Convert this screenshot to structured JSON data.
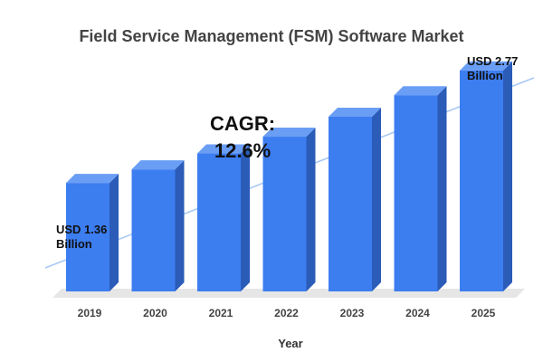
{
  "chart_data": {
    "type": "bar",
    "title": "Field Service Management (FSM) Software Market",
    "xlabel": "Year",
    "ylabel": "",
    "categories": [
      "2019",
      "2020",
      "2021",
      "2022",
      "2023",
      "2024",
      "2025"
    ],
    "values": [
      1.36,
      1.53,
      1.73,
      1.94,
      2.19,
      2.46,
      2.77
    ],
    "ylim": [
      0,
      3.2
    ],
    "annotations": {
      "start_line1": "USD 1.36",
      "start_line2": "Billion",
      "end_line1": "USD 2.77",
      "end_line2": "Billion",
      "cagr_line1": "CAGR:",
      "cagr_line2": "12.6%"
    },
    "grid": false,
    "legend": "none",
    "colors": {
      "bar_front": "#3c7df0",
      "bar_side": "#2a5cb8",
      "bar_top": "#6a9ef5",
      "trend_line": "#a9c9f5",
      "floor": "#e6e6e6",
      "tick_label": "#444444"
    }
  }
}
